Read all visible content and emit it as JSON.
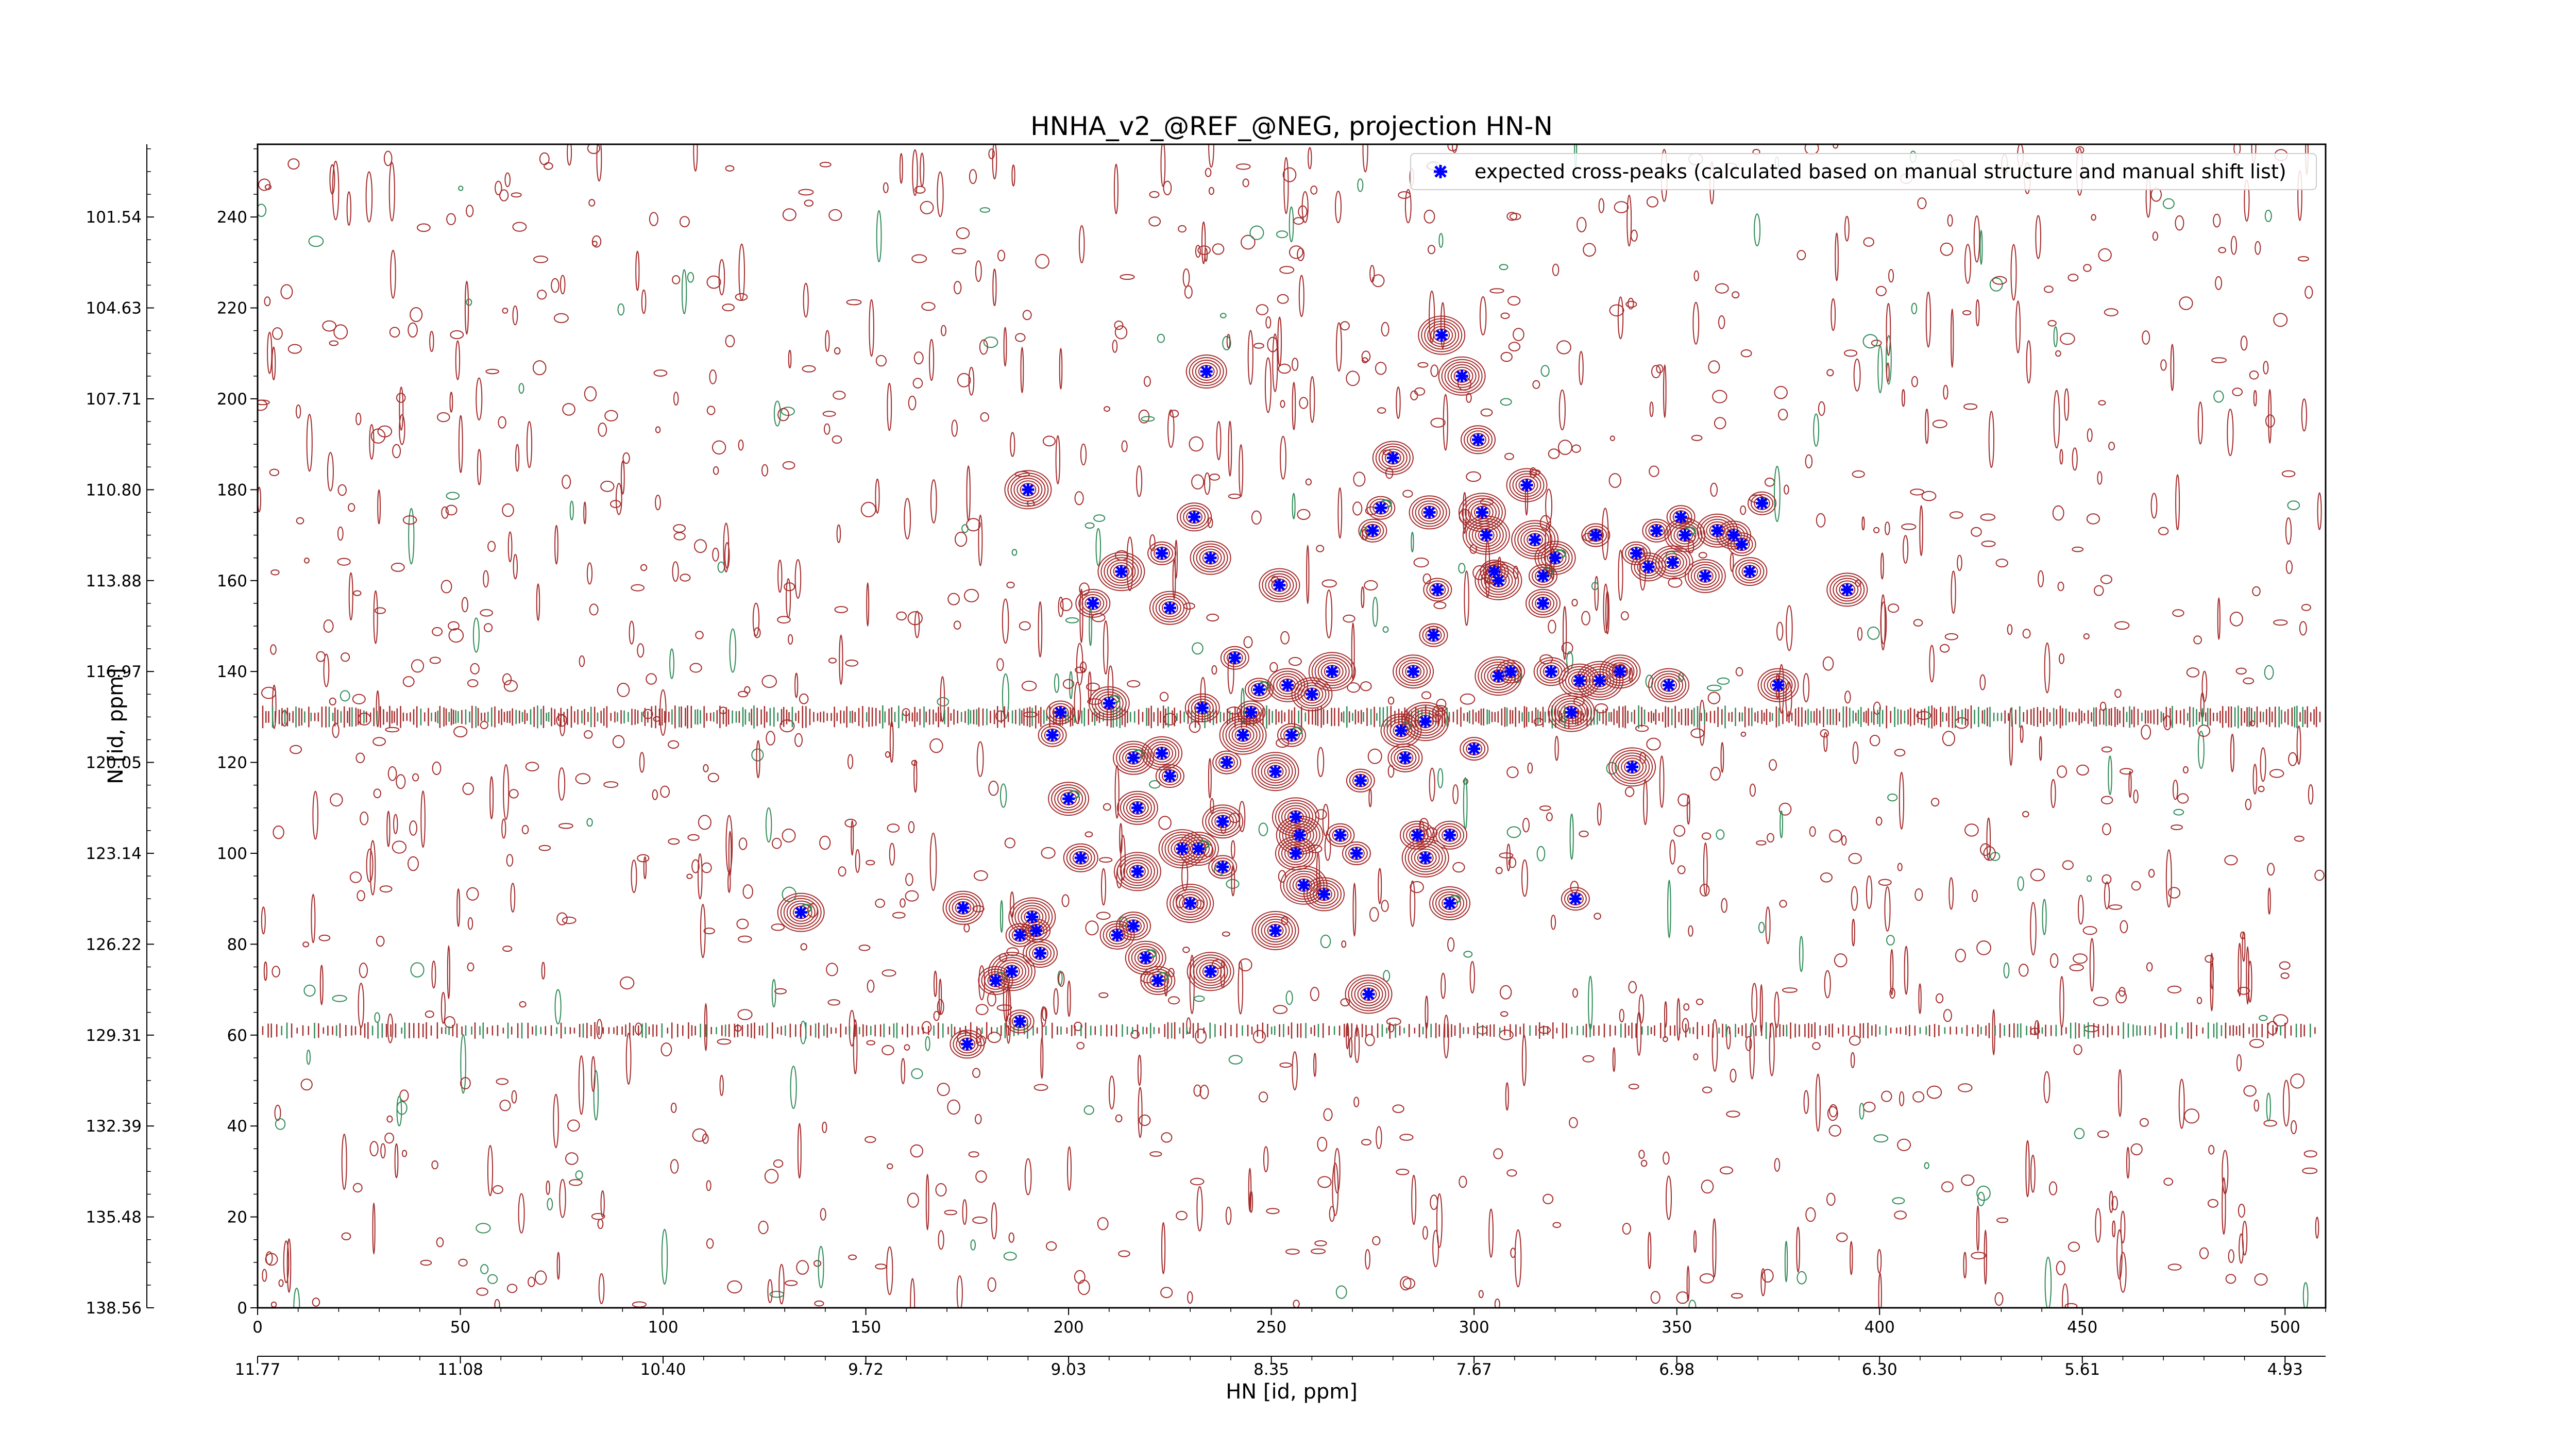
{
  "chart_data": {
    "type": "scatter",
    "title": "HNHA_v2_@REF_@NEG, projection HN-N",
    "xlabel": "HN [id, ppm]",
    "ylabel": "N [id, ppm]",
    "xlim": [
      0,
      510
    ],
    "ylim": [
      0,
      256
    ],
    "x_ticks": [
      0,
      50,
      100,
      150,
      200,
      250,
      300,
      350,
      400,
      450,
      500
    ],
    "y_ticks": [
      0,
      20,
      40,
      60,
      80,
      100,
      120,
      140,
      160,
      180,
      200,
      220,
      240
    ],
    "x_ppm_ticks": [
      "11.77",
      "11.08",
      "10.40",
      "9.72",
      "9.03",
      "8.35",
      "7.67",
      "6.98",
      "6.30",
      "5.61",
      "4.93"
    ],
    "y_ppm_ticks": [
      "138.56",
      "135.48",
      "132.39",
      "129.31",
      "126.22",
      "123.14",
      "120.05",
      "116.97",
      "113.88",
      "110.80",
      "107.71",
      "104.63",
      "101.54"
    ],
    "legend": {
      "placement": "top-right",
      "entries": [
        "expected cross-peaks (calculated based on manual structure and manual shift list)"
      ]
    },
    "colors": {
      "marker": "#0000ff",
      "positive_contour": "#a52a2a",
      "negative_contour": "#2e8b57"
    },
    "series": [
      {
        "name": "expected cross-peaks (calculated based on manual structure and manual shift list)",
        "points": [
          [
            134,
            87
          ],
          [
            174,
            88
          ],
          [
            175,
            58
          ],
          [
            182,
            72
          ],
          [
            186,
            74
          ],
          [
            188,
            63
          ],
          [
            188,
            82
          ],
          [
            191,
            86
          ],
          [
            192,
            83
          ],
          [
            190,
            180
          ],
          [
            193,
            78
          ],
          [
            196,
            126
          ],
          [
            198,
            131
          ],
          [
            200,
            112
          ],
          [
            203,
            99
          ],
          [
            206,
            155
          ],
          [
            210,
            133
          ],
          [
            212,
            82
          ],
          [
            213,
            162
          ],
          [
            216,
            84
          ],
          [
            216,
            121
          ],
          [
            217,
            110
          ],
          [
            217,
            96
          ],
          [
            219,
            77
          ],
          [
            222,
            72
          ],
          [
            223,
            122
          ],
          [
            223,
            166
          ],
          [
            225,
            154
          ],
          [
            225,
            117
          ],
          [
            228,
            101
          ],
          [
            231,
            174
          ],
          [
            230,
            89
          ],
          [
            232,
            101
          ],
          [
            233,
            132
          ],
          [
            234,
            206
          ],
          [
            235,
            165
          ],
          [
            235,
            74
          ],
          [
            238,
            107
          ],
          [
            238,
            97
          ],
          [
            239,
            120
          ],
          [
            241,
            143
          ],
          [
            243,
            126
          ],
          [
            245,
            131
          ],
          [
            247,
            136
          ],
          [
            251,
            118
          ],
          [
            251,
            83
          ],
          [
            252,
            159
          ],
          [
            254,
            137
          ],
          [
            255,
            126
          ],
          [
            256,
            108
          ],
          [
            256,
            100
          ],
          [
            257,
            104
          ],
          [
            258,
            93
          ],
          [
            260,
            135
          ],
          [
            263,
            91
          ],
          [
            265,
            140
          ],
          [
            267,
            104
          ],
          [
            271,
            100
          ],
          [
            272,
            116
          ],
          [
            274,
            69
          ],
          [
            275,
            171
          ],
          [
            277,
            176
          ],
          [
            280,
            187
          ],
          [
            282,
            127
          ],
          [
            283,
            121
          ],
          [
            285,
            140
          ],
          [
            286,
            104
          ],
          [
            288,
            99
          ],
          [
            288,
            129
          ],
          [
            289,
            175
          ],
          [
            290,
            148
          ],
          [
            291,
            158
          ],
          [
            292,
            214
          ],
          [
            294,
            104
          ],
          [
            294,
            89
          ],
          [
            297,
            205
          ],
          [
            300,
            123
          ],
          [
            301,
            191
          ],
          [
            302,
            175
          ],
          [
            303,
            170
          ],
          [
            305,
            162
          ],
          [
            306,
            160
          ],
          [
            306,
            139
          ],
          [
            309,
            140
          ],
          [
            313,
            181
          ],
          [
            315,
            169
          ],
          [
            317,
            161
          ],
          [
            317,
            155
          ],
          [
            319,
            140
          ],
          [
            320,
            165
          ],
          [
            324,
            131
          ],
          [
            325,
            90
          ],
          [
            326,
            138
          ],
          [
            330,
            170
          ],
          [
            331,
            138
          ],
          [
            336,
            140
          ],
          [
            339,
            119
          ],
          [
            340,
            166
          ],
          [
            343,
            163
          ],
          [
            345,
            171
          ],
          [
            348,
            137
          ],
          [
            349,
            164
          ],
          [
            351,
            174
          ],
          [
            352,
            170
          ],
          [
            357,
            161
          ],
          [
            360,
            171
          ],
          [
            364,
            170
          ],
          [
            366,
            168
          ],
          [
            368,
            162
          ],
          [
            371,
            177
          ],
          [
            375,
            137
          ],
          [
            392,
            158
          ]
        ]
      }
    ]
  }
}
